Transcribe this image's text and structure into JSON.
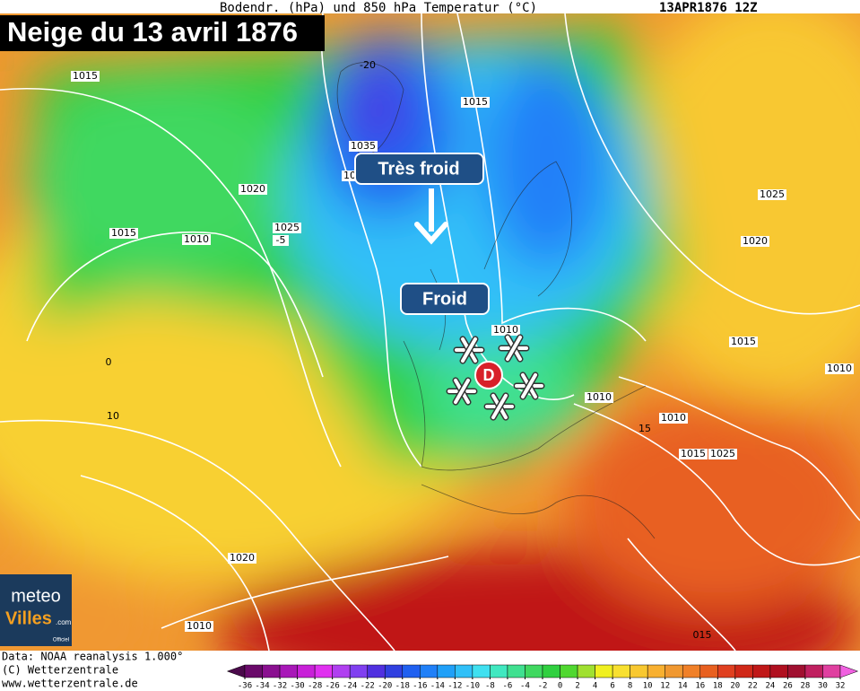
{
  "header": {
    "product": "Bodendr. (hPa) und 850 hPa Temperatur (°C)",
    "date": "13APR1876 12Z"
  },
  "title": "Neige du 13 avril 1876",
  "annotations": {
    "very_cold": "Très froid",
    "cold": "Froid",
    "low": "D"
  },
  "isobar_labels": [
    "1015",
    "1015",
    "1020",
    "1015",
    "1010",
    "1025",
    "1035",
    "10",
    "-5",
    "1010",
    "1025",
    "1020",
    "1015",
    "1010",
    "1010",
    "1010",
    "1015",
    "1025",
    "1020",
    "1010",
    "015",
    "0",
    "10",
    "15",
    "-20"
  ],
  "footer": {
    "data": "Data: NOAA reanalysis 1.000°",
    "copyright": "(C) Wetterzentrale",
    "url": "www.wetterzentrale.de"
  },
  "logo": {
    "line1": "meteo",
    "line2": "Villes",
    "suffix": ".com",
    "badge": "Officiel"
  },
  "colorbar": {
    "ticks": [
      -36,
      -34,
      -32,
      -30,
      -28,
      -26,
      -24,
      -22,
      -20,
      -18,
      -16,
      -14,
      -12,
      -10,
      -8,
      -6,
      -4,
      -2,
      0,
      2,
      4,
      6,
      8,
      10,
      12,
      14,
      16,
      18,
      20,
      22,
      24,
      26,
      28,
      30,
      32
    ],
    "colors": [
      "#4b0a4b",
      "#6a0a6a",
      "#8a1090",
      "#a818b8",
      "#c820d8",
      "#e030f0",
      "#b040f0",
      "#8040f0",
      "#5030e0",
      "#3040e0",
      "#2060f0",
      "#2080f8",
      "#20a0f8",
      "#30c0f8",
      "#40e0f0",
      "#40e8c0",
      "#40e090",
      "#40d860",
      "#30d040",
      "#50d830",
      "#a0e030",
      "#f0f020",
      "#f8e030",
      "#f8c830",
      "#f8b030",
      "#f09830",
      "#f08028",
      "#e86020",
      "#e04020",
      "#d02818",
      "#c01818",
      "#b01020",
      "#a01030",
      "#c02060",
      "#e040a0",
      "#f060e0"
    ]
  }
}
